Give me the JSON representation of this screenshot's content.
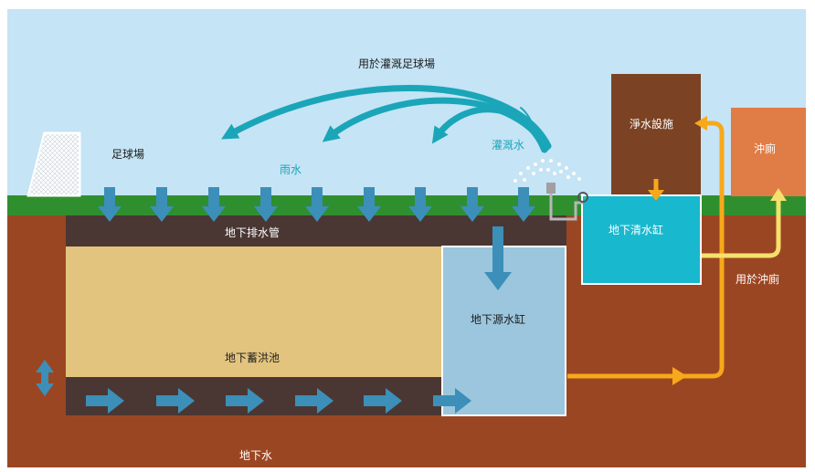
{
  "labels": {
    "irrigate_field": "用於灌溉足球場",
    "football_field": "足球場",
    "rain": "雨水",
    "irrigation": "灌溉水",
    "purifier": "淨水設施",
    "toilet": "沖廁",
    "drain_pipe": "地下排水管",
    "clean_tank": "地下清水缸",
    "for_toilet": "用於沖廁",
    "source_tank": "地下源水缸",
    "detention_pond": "地下蓄洪池",
    "groundwater": "地下水"
  },
  "colors": {
    "sky": "#c5e4f5",
    "grass": "#2f8f2f",
    "soil": "#9b4622",
    "drain_layer": "#4a3733",
    "pond": "#e3c47e",
    "source_tank": "#9bc6dd",
    "clean_tank": "#18b8cf",
    "purifier": "#7b4324",
    "toilet": "#e07c45",
    "arrow_blue": "#3c8fb8",
    "arrow_teal": "#1aa6b8",
    "pipe_orange": "#f7a81b",
    "pipe_yellow": "#f6e06c"
  }
}
